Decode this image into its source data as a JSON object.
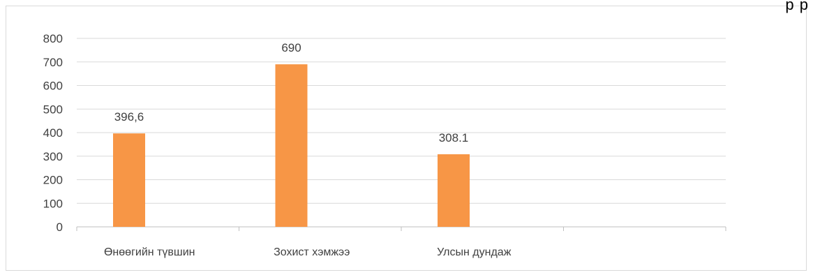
{
  "corner_text": "p p",
  "chart_data": {
    "type": "bar",
    "title": "",
    "xlabel": "",
    "ylabel": "",
    "categories": [
      "Өнөөгийн түвшин",
      "Зохист хэмжээ",
      "Улсын дундаж",
      ""
    ],
    "values": [
      396.6,
      690,
      308.1,
      null
    ],
    "data_labels": [
      "396,6",
      "690",
      "308.1",
      ""
    ],
    "ylim": [
      0,
      800
    ],
    "yticks": [
      0,
      100,
      200,
      300,
      400,
      500,
      600,
      700,
      800
    ],
    "grid": true,
    "legend": "none",
    "colors": {
      "bar": "#F79646",
      "grid": "#d9d9d9",
      "axis": "#bfbfbf",
      "text": "#404040"
    }
  }
}
